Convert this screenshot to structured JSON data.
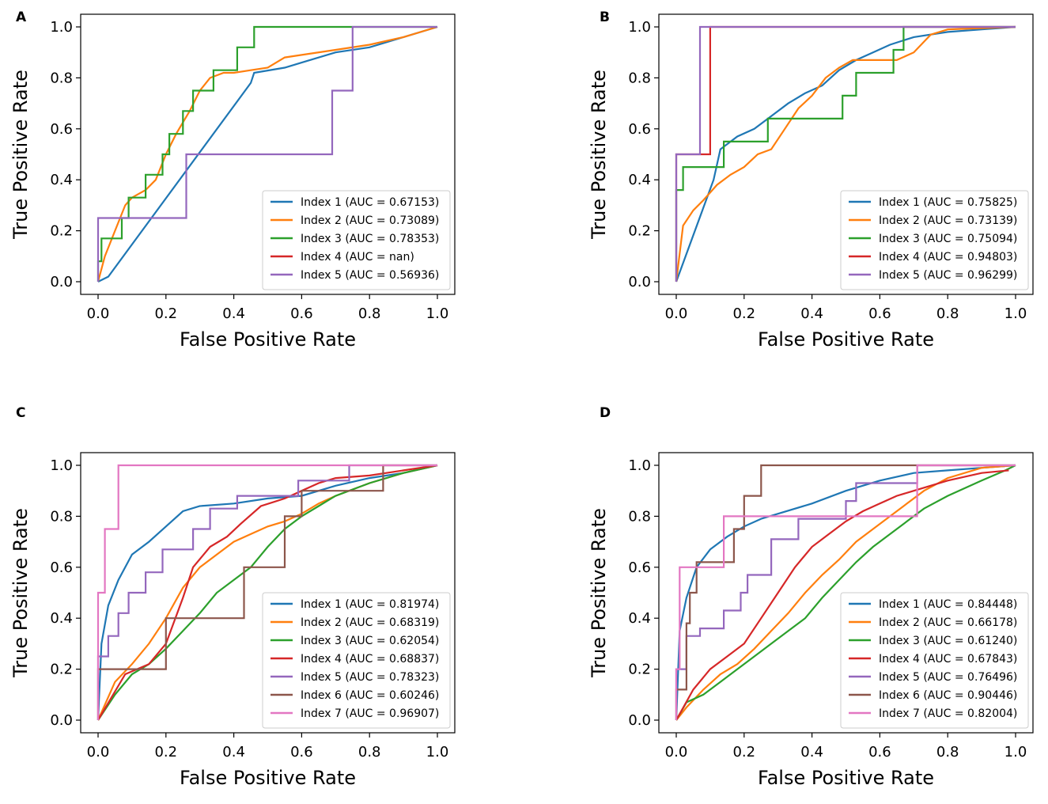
{
  "colors": {
    "Index 1": "#1f77b4",
    "Index 2": "#ff7f0e",
    "Index 3": "#2ca02c",
    "Index 4": "#d62728",
    "Index 5": "#9467bd",
    "Index 6": "#8c564b",
    "Index 7": "#e377c2"
  },
  "chart_data": [
    {
      "panel": "A",
      "type": "line",
      "xlabel": "False Positive Rate",
      "ylabel": "True Positive Rate",
      "xlim": [
        0,
        1
      ],
      "ylim": [
        0,
        1
      ],
      "xticks": [
        "0.0",
        "0.2",
        "0.4",
        "0.6",
        "0.8",
        "1.0"
      ],
      "yticks": [
        "0.0",
        "0.2",
        "0.4",
        "0.6",
        "0.8",
        "1.0"
      ],
      "legend_position": "lower-right",
      "series": [
        {
          "name": "Index 1",
          "legend": "Index 1 (AUC = 0.67153)",
          "x": [
            0,
            0.03,
            0.45,
            0.46,
            0.55,
            0.6,
            0.7,
            0.8,
            0.9,
            1.0
          ],
          "y": [
            0,
            0.02,
            0.78,
            0.82,
            0.84,
            0.86,
            0.9,
            0.92,
            0.96,
            1.0
          ]
        },
        {
          "name": "Index 2",
          "legend": "Index 2 (AUC = 0.73089)",
          "x": [
            0,
            0.02,
            0.05,
            0.08,
            0.1,
            0.14,
            0.17,
            0.2,
            0.23,
            0.27,
            0.3,
            0.33,
            0.37,
            0.4,
            0.45,
            0.5,
            0.55,
            0.6,
            0.7,
            0.8,
            0.9,
            1.0
          ],
          "y": [
            0,
            0.1,
            0.2,
            0.3,
            0.33,
            0.36,
            0.4,
            0.5,
            0.58,
            0.67,
            0.75,
            0.8,
            0.82,
            0.82,
            0.83,
            0.84,
            0.88,
            0.89,
            0.91,
            0.93,
            0.96,
            1.0
          ]
        },
        {
          "name": "Index 3",
          "legend": "Index 3 (AUC = 0.78353)",
          "x": [
            0,
            0,
            0.01,
            0.01,
            0.07,
            0.07,
            0.09,
            0.09,
            0.14,
            0.14,
            0.19,
            0.19,
            0.21,
            0.21,
            0.25,
            0.25,
            0.28,
            0.28,
            0.34,
            0.34,
            0.41,
            0.41,
            0.46,
            0.46,
            0.75,
            1.0
          ],
          "y": [
            0,
            0.08,
            0.08,
            0.17,
            0.17,
            0.25,
            0.25,
            0.33,
            0.33,
            0.42,
            0.42,
            0.5,
            0.5,
            0.58,
            0.58,
            0.67,
            0.67,
            0.75,
            0.75,
            0.83,
            0.83,
            0.92,
            0.92,
            1.0,
            1.0,
            1.0
          ]
        },
        {
          "name": "Index 4",
          "legend": "Index 4 (AUC = nan)",
          "x": [],
          "y": []
        },
        {
          "name": "Index 5",
          "legend": "Index 5 (AUC = 0.56936)",
          "x": [
            0,
            0,
            0.26,
            0.26,
            0.69,
            0.69,
            0.75,
            0.75,
            1.0
          ],
          "y": [
            0,
            0.25,
            0.25,
            0.5,
            0.5,
            0.75,
            0.75,
            1.0,
            1.0
          ]
        }
      ]
    },
    {
      "panel": "B",
      "type": "line",
      "xlabel": "False Positive Rate",
      "ylabel": "True Positive Rate",
      "xlim": [
        0,
        1
      ],
      "ylim": [
        0,
        1
      ],
      "xticks": [
        "0.0",
        "0.2",
        "0.4",
        "0.6",
        "0.8",
        "1.0"
      ],
      "yticks": [
        "0.0",
        "0.2",
        "0.4",
        "0.6",
        "0.8",
        "1.0"
      ],
      "legend_position": "lower-right",
      "series": [
        {
          "name": "Index 1",
          "legend": "Index 1 (AUC = 0.75825)",
          "x": [
            0,
            0.11,
            0.13,
            0.18,
            0.23,
            0.28,
            0.33,
            0.38,
            0.43,
            0.48,
            0.53,
            0.58,
            0.63,
            0.7,
            0.8,
            0.9,
            1.0
          ],
          "y": [
            0,
            0.4,
            0.52,
            0.57,
            0.6,
            0.65,
            0.7,
            0.74,
            0.77,
            0.83,
            0.87,
            0.9,
            0.93,
            0.96,
            0.98,
            0.99,
            1.0
          ]
        },
        {
          "name": "Index 2",
          "legend": "Index 2 (AUC = 0.73139)",
          "x": [
            0,
            0.02,
            0.05,
            0.08,
            0.12,
            0.16,
            0.2,
            0.24,
            0.28,
            0.32,
            0.36,
            0.4,
            0.44,
            0.48,
            0.52,
            0.56,
            0.6,
            0.65,
            0.7,
            0.75,
            0.8,
            1.0
          ],
          "y": [
            0,
            0.22,
            0.28,
            0.32,
            0.38,
            0.42,
            0.45,
            0.5,
            0.52,
            0.6,
            0.68,
            0.73,
            0.8,
            0.84,
            0.87,
            0.87,
            0.87,
            0.87,
            0.9,
            0.97,
            0.99,
            1.0
          ]
        },
        {
          "name": "Index 3",
          "legend": "Index 3 (AUC = 0.75094)",
          "x": [
            0,
            0,
            0.02,
            0.02,
            0.07,
            0.07,
            0.14,
            0.14,
            0.27,
            0.27,
            0.49,
            0.49,
            0.53,
            0.53,
            0.64,
            0.64,
            0.67,
            0.67,
            1.0
          ],
          "y": [
            0,
            0.36,
            0.36,
            0.45,
            0.45,
            0.45,
            0.45,
            0.55,
            0.55,
            0.64,
            0.64,
            0.73,
            0.73,
            0.82,
            0.82,
            0.91,
            0.91,
            1.0,
            1.0
          ]
        },
        {
          "name": "Index 4",
          "legend": "Index 4 (AUC = 0.94803)",
          "x": [
            0,
            0,
            0.1,
            0.1,
            1.0
          ],
          "y": [
            0,
            0.5,
            0.5,
            1.0,
            1.0
          ]
        },
        {
          "name": "Index 5",
          "legend": "Index 5 (AUC = 0.96299)",
          "x": [
            0,
            0,
            0.07,
            0.07,
            1.0
          ],
          "y": [
            0,
            0.5,
            0.5,
            1.0,
            1.0
          ]
        }
      ]
    },
    {
      "panel": "C",
      "type": "line",
      "xlabel": "False Positive Rate",
      "ylabel": "True Positive Rate",
      "xlim": [
        0,
        1
      ],
      "ylim": [
        0,
        1
      ],
      "xticks": [
        "0.0",
        "0.2",
        "0.4",
        "0.6",
        "0.8",
        "1.0"
      ],
      "yticks": [
        "0.0",
        "0.2",
        "0.4",
        "0.6",
        "0.8",
        "1.0"
      ],
      "legend_position": "lower-right",
      "series": [
        {
          "name": "Index 1",
          "legend": "Index 1 (AUC = 0.81974)",
          "x": [
            0,
            0.01,
            0.03,
            0.06,
            0.1,
            0.15,
            0.2,
            0.25,
            0.3,
            0.4,
            0.5,
            0.6,
            0.7,
            0.8,
            0.9,
            1.0
          ],
          "y": [
            0,
            0.3,
            0.45,
            0.55,
            0.65,
            0.7,
            0.76,
            0.82,
            0.84,
            0.85,
            0.87,
            0.88,
            0.92,
            0.95,
            0.97,
            1.0
          ]
        },
        {
          "name": "Index 2",
          "legend": "Index 2 (AUC = 0.68319)",
          "x": [
            0,
            0.05,
            0.1,
            0.15,
            0.2,
            0.25,
            0.3,
            0.35,
            0.4,
            0.45,
            0.5,
            0.55,
            0.6,
            0.65,
            0.7,
            0.8,
            0.9,
            1.0
          ],
          "y": [
            0,
            0.15,
            0.22,
            0.3,
            0.4,
            0.52,
            0.6,
            0.65,
            0.7,
            0.73,
            0.76,
            0.78,
            0.81,
            0.85,
            0.88,
            0.93,
            0.97,
            1.0
          ]
        },
        {
          "name": "Index 3",
          "legend": "Index 3 (AUC = 0.62054)",
          "x": [
            0,
            0.05,
            0.1,
            0.15,
            0.2,
            0.25,
            0.3,
            0.35,
            0.4,
            0.45,
            0.5,
            0.55,
            0.6,
            0.65,
            0.7,
            0.8,
            0.9,
            1.0
          ],
          "y": [
            0,
            0.1,
            0.18,
            0.22,
            0.28,
            0.35,
            0.42,
            0.5,
            0.55,
            0.6,
            0.68,
            0.75,
            0.8,
            0.84,
            0.88,
            0.93,
            0.97,
            1.0
          ]
        },
        {
          "name": "Index 4",
          "legend": "Index 4 (AUC = 0.68837)",
          "x": [
            0,
            0.08,
            0.15,
            0.2,
            0.25,
            0.28,
            0.33,
            0.38,
            0.42,
            0.48,
            0.55,
            0.6,
            0.65,
            0.7,
            0.8,
            0.9,
            1.0
          ],
          "y": [
            0,
            0.18,
            0.22,
            0.3,
            0.48,
            0.6,
            0.68,
            0.72,
            0.77,
            0.84,
            0.87,
            0.9,
            0.93,
            0.95,
            0.96,
            0.98,
            1.0
          ]
        },
        {
          "name": "Index 5",
          "legend": "Index 5 (AUC = 0.78323)",
          "x": [
            0,
            0,
            0.03,
            0.03,
            0.06,
            0.06,
            0.09,
            0.09,
            0.14,
            0.14,
            0.19,
            0.19,
            0.28,
            0.28,
            0.33,
            0.33,
            0.41,
            0.41,
            0.59,
            0.59,
            0.74,
            0.74,
            1.0
          ],
          "y": [
            0,
            0.25,
            0.25,
            0.33,
            0.33,
            0.42,
            0.42,
            0.5,
            0.5,
            0.58,
            0.58,
            0.67,
            0.67,
            0.75,
            0.75,
            0.83,
            0.83,
            0.88,
            0.88,
            0.94,
            0.94,
            1.0,
            1.0
          ]
        },
        {
          "name": "Index 6",
          "legend": "Index 6 (AUC = 0.60246)",
          "x": [
            0,
            0,
            0.05,
            0.05,
            0.2,
            0.2,
            0.43,
            0.43,
            0.55,
            0.55,
            0.6,
            0.6,
            0.84,
            0.84,
            1.0
          ],
          "y": [
            0,
            0.2,
            0.2,
            0.2,
            0.2,
            0.4,
            0.4,
            0.6,
            0.6,
            0.8,
            0.8,
            0.9,
            0.9,
            1.0,
            1.0
          ]
        },
        {
          "name": "Index 7",
          "legend": "Index 7 (AUC = 0.96907)",
          "x": [
            0,
            0,
            0.02,
            0.02,
            0.04,
            0.04,
            0.06,
            0.06,
            1.0
          ],
          "y": [
            0,
            0.5,
            0.5,
            0.75,
            0.75,
            0.75,
            0.75,
            1.0,
            1.0
          ]
        }
      ]
    },
    {
      "panel": "D",
      "type": "line",
      "xlabel": "False Positive Rate",
      "ylabel": "True Positive Rate",
      "xlim": [
        0,
        1
      ],
      "ylim": [
        0,
        1
      ],
      "xticks": [
        "0.0",
        "0.2",
        "0.4",
        "0.6",
        "0.8",
        "1.0"
      ],
      "yticks": [
        "0.0",
        "0.2",
        "0.4",
        "0.6",
        "0.8",
        "1.0"
      ],
      "legend_position": "lower-right",
      "series": [
        {
          "name": "Index 1",
          "legend": "Index 1 (AUC = 0.84448)",
          "x": [
            0,
            0.01,
            0.03,
            0.06,
            0.1,
            0.15,
            0.2,
            0.25,
            0.3,
            0.4,
            0.5,
            0.6,
            0.7,
            0.8,
            0.9,
            1.0
          ],
          "y": [
            0,
            0.35,
            0.48,
            0.6,
            0.67,
            0.72,
            0.76,
            0.79,
            0.81,
            0.85,
            0.9,
            0.94,
            0.97,
            0.98,
            0.99,
            1.0
          ]
        },
        {
          "name": "Index 2",
          "legend": "Index 2 (AUC = 0.66178)",
          "x": [
            0,
            0.03,
            0.08,
            0.13,
            0.18,
            0.23,
            0.28,
            0.33,
            0.38,
            0.43,
            0.48,
            0.53,
            0.58,
            0.63,
            0.68,
            0.73,
            0.8,
            0.9,
            1.0
          ],
          "y": [
            0,
            0.05,
            0.12,
            0.18,
            0.22,
            0.28,
            0.35,
            0.42,
            0.5,
            0.57,
            0.63,
            0.7,
            0.75,
            0.8,
            0.85,
            0.9,
            0.95,
            0.99,
            1.0
          ]
        },
        {
          "name": "Index 3",
          "legend": "Index 3 (AUC = 0.61240)",
          "x": [
            0,
            0.03,
            0.08,
            0.13,
            0.18,
            0.23,
            0.28,
            0.33,
            0.38,
            0.43,
            0.48,
            0.53,
            0.58,
            0.63,
            0.68,
            0.73,
            0.8,
            0.9,
            0.97,
            1.0
          ],
          "y": [
            0,
            0.07,
            0.1,
            0.15,
            0.2,
            0.25,
            0.3,
            0.35,
            0.4,
            0.48,
            0.55,
            0.62,
            0.68,
            0.73,
            0.78,
            0.83,
            0.88,
            0.94,
            0.98,
            1.0
          ]
        },
        {
          "name": "Index 4",
          "legend": "Index 4 (AUC = 0.67843)",
          "x": [
            0,
            0.05,
            0.1,
            0.15,
            0.2,
            0.25,
            0.3,
            0.35,
            0.4,
            0.45,
            0.5,
            0.55,
            0.6,
            0.65,
            0.7,
            0.8,
            0.9,
            0.98
          ],
          "y": [
            0,
            0.12,
            0.2,
            0.25,
            0.3,
            0.4,
            0.5,
            0.6,
            0.68,
            0.73,
            0.78,
            0.82,
            0.85,
            0.88,
            0.9,
            0.94,
            0.97,
            0.98
          ]
        },
        {
          "name": "Index 5",
          "legend": "Index 5 (AUC = 0.76496)",
          "x": [
            0,
            0,
            0.03,
            0.03,
            0.07,
            0.07,
            0.14,
            0.14,
            0.19,
            0.19,
            0.21,
            0.21,
            0.28,
            0.28,
            0.36,
            0.36,
            0.5,
            0.5,
            0.53,
            0.53,
            0.71,
            0.71,
            1.0
          ],
          "y": [
            0,
            0.2,
            0.2,
            0.33,
            0.33,
            0.36,
            0.36,
            0.43,
            0.43,
            0.5,
            0.5,
            0.57,
            0.57,
            0.71,
            0.71,
            0.79,
            0.79,
            0.86,
            0.86,
            0.93,
            0.93,
            1.0,
            1.0
          ]
        },
        {
          "name": "Index 6",
          "legend": "Index 6 (AUC = 0.90446)",
          "x": [
            0,
            0,
            0.03,
            0.03,
            0.04,
            0.04,
            0.06,
            0.06,
            0.11,
            0.11,
            0.15,
            0.15,
            0.17,
            0.17,
            0.2,
            0.2,
            0.25,
            0.25,
            1.0
          ],
          "y": [
            0,
            0.12,
            0.12,
            0.38,
            0.38,
            0.5,
            0.5,
            0.62,
            0.62,
            0.62,
            0.62,
            0.62,
            0.62,
            0.75,
            0.75,
            0.88,
            0.88,
            1.0,
            1.0
          ]
        },
        {
          "name": "Index 7",
          "legend": "Index 7 (AUC = 0.82004)",
          "x": [
            0,
            0,
            0.01,
            0.01,
            0.14,
            0.14,
            0.71,
            0.71,
            1.0
          ],
          "y": [
            0,
            0.2,
            0.2,
            0.6,
            0.6,
            0.8,
            0.8,
            1.0,
            1.0
          ]
        }
      ]
    }
  ]
}
